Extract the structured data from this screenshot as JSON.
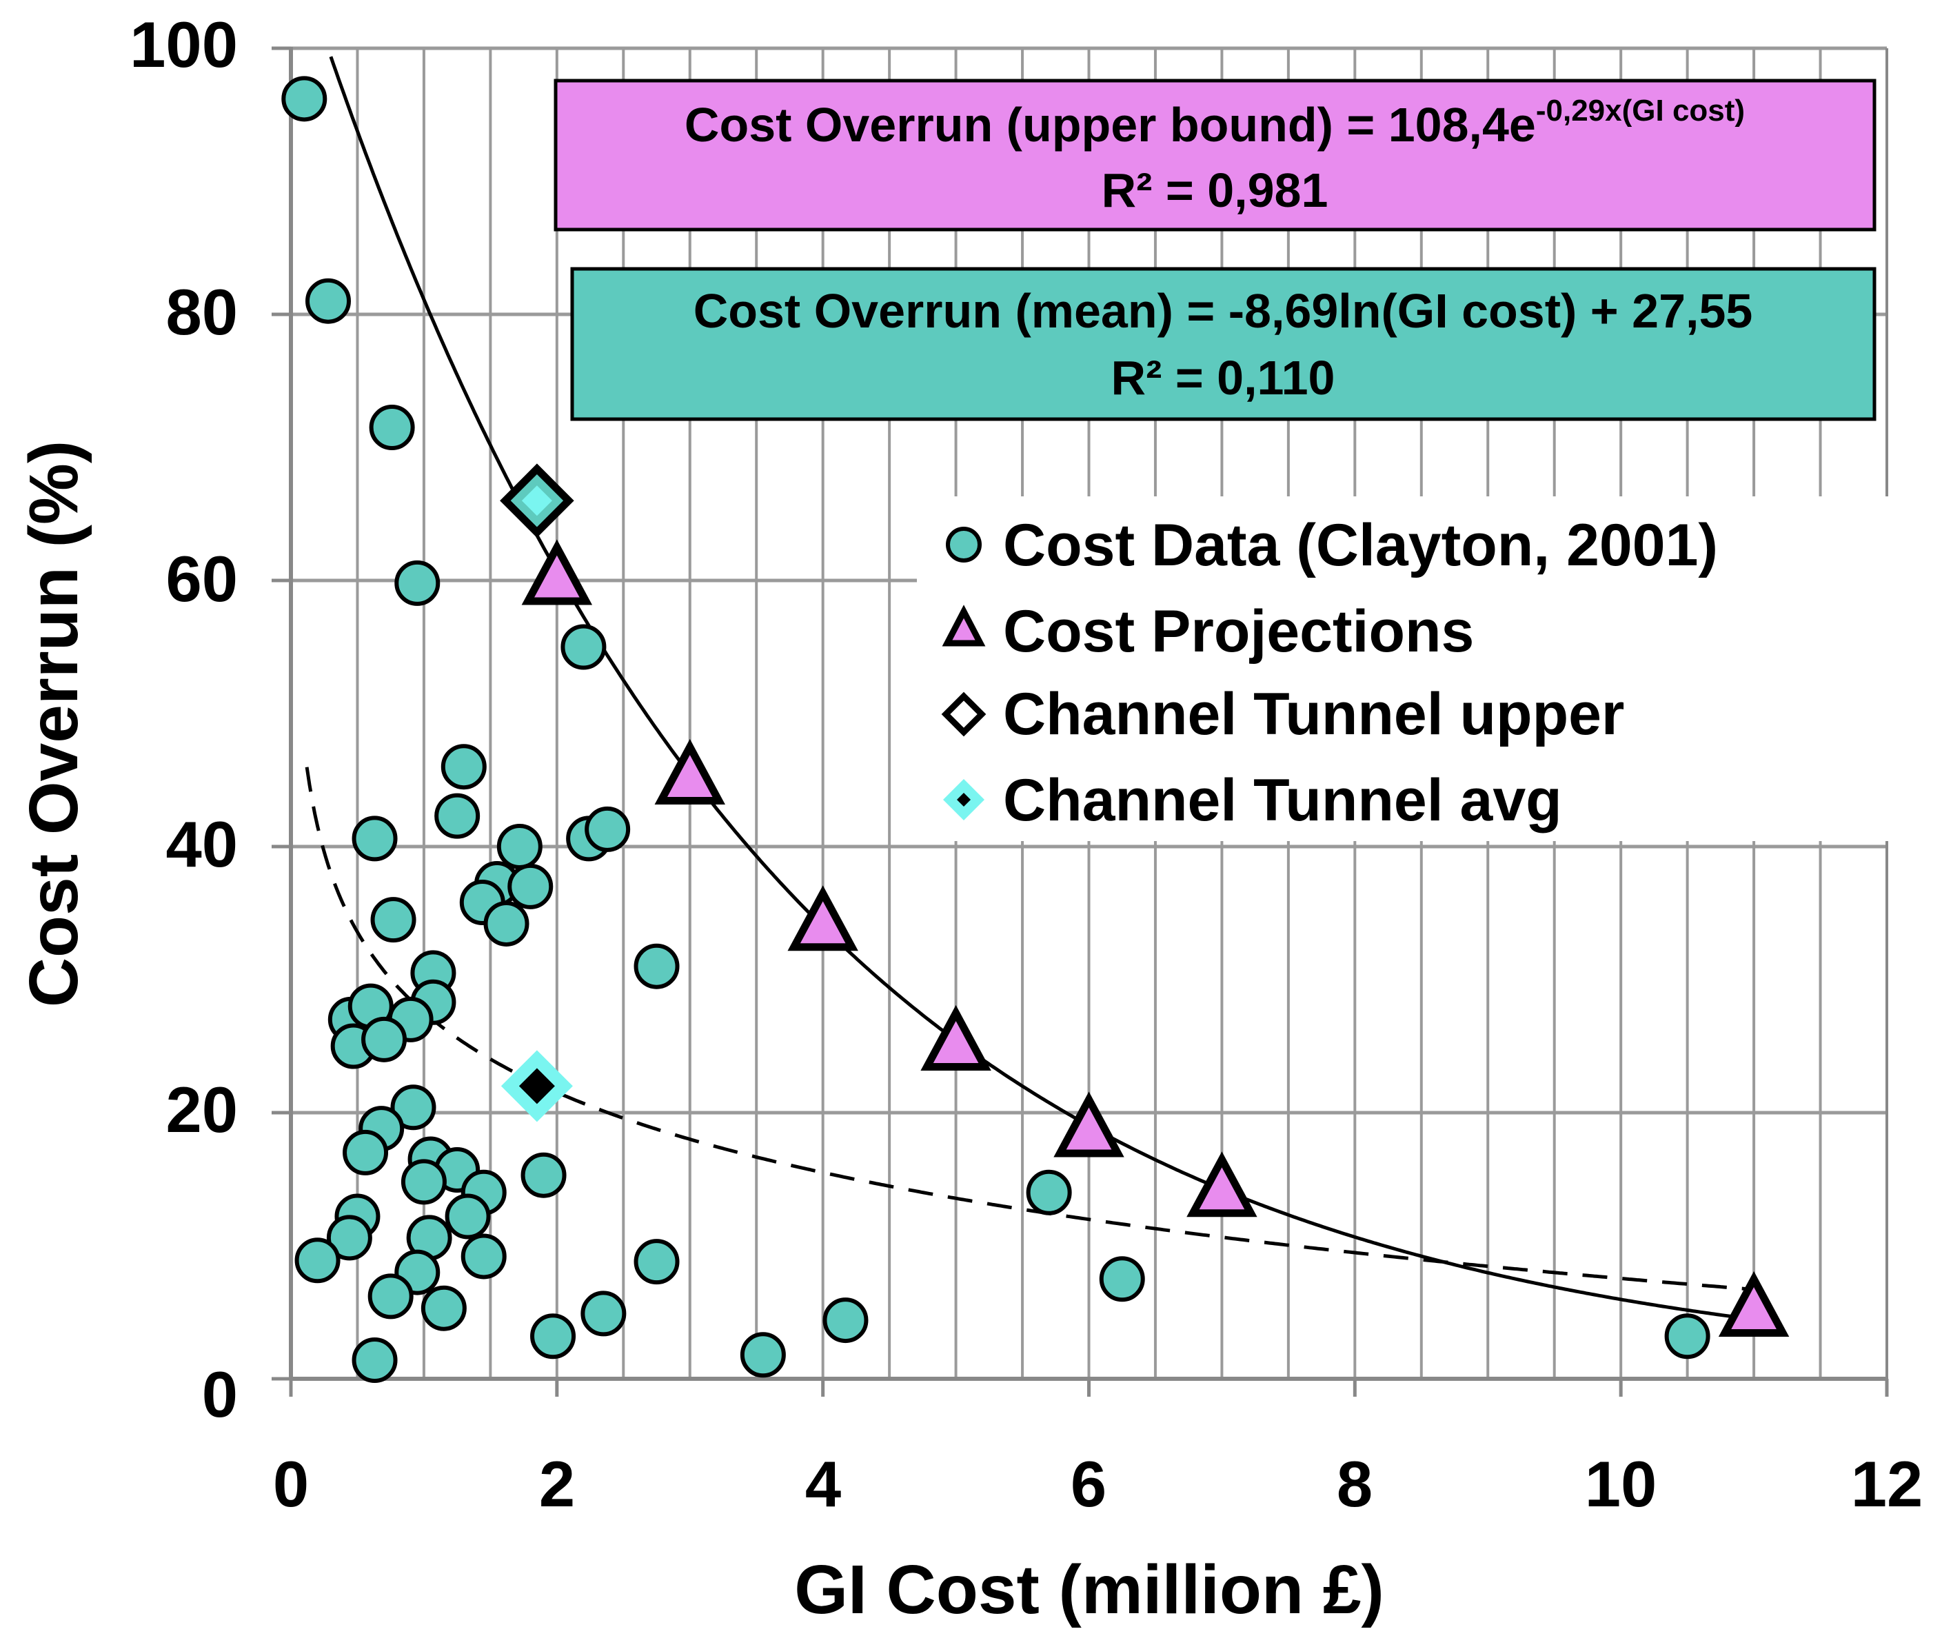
{
  "chart_data": {
    "type": "scatter",
    "xlabel": "GI Cost (million £)",
    "ylabel": "Cost Overrun (%)",
    "xlim": [
      0,
      12
    ],
    "ylim": [
      0,
      100
    ],
    "xticks": [
      "0",
      "2",
      "4",
      "6",
      "8",
      "10",
      "12"
    ],
    "yticks": [
      "0",
      "20",
      "40",
      "60",
      "80",
      "100"
    ],
    "grid": "major horizontal every 20, vertical every 0.5",
    "legend": {
      "position": "right-middle",
      "entries": [
        {
          "label": "Cost Data (Clayton, 2001)",
          "marker": "circle"
        },
        {
          "label": "Cost Projections",
          "marker": "triangle"
        },
        {
          "label": "Channel Tunnel upper",
          "marker": "diamond"
        },
        {
          "label": "Channel Tunnel avg",
          "marker": "diamond"
        }
      ]
    },
    "equations": {
      "upper": {
        "prefix": "Cost Overrun (upper bound) = 108,4e",
        "exponent": "-0,29x(GI cost)",
        "r2": "R² = 0,981"
      },
      "mean": {
        "text": "Cost Overrun (mean) = -8,69ln(GI cost) + 27,55",
        "r2": "R² = 0,110"
      }
    },
    "series": [
      {
        "name": "Cost Data (Clayton, 2001)",
        "marker": "circle",
        "points": [
          [
            0.1,
            96.2
          ],
          [
            0.28,
            81
          ],
          [
            0.76,
            71.5
          ],
          [
            0.95,
            59.8
          ],
          [
            2.2,
            55
          ],
          [
            1.3,
            46
          ],
          [
            0.63,
            40.6
          ],
          [
            1.25,
            42.3
          ],
          [
            1.72,
            40
          ],
          [
            2.24,
            40.6
          ],
          [
            2.38,
            41.3
          ],
          [
            1.55,
            37.2
          ],
          [
            1.44,
            35.8
          ],
          [
            1.8,
            37
          ],
          [
            1.62,
            34.2
          ],
          [
            0.77,
            34.5
          ],
          [
            1.07,
            30.5
          ],
          [
            1.07,
            28.3
          ],
          [
            0.45,
            27
          ],
          [
            0.6,
            28
          ],
          [
            0.9,
            27
          ],
          [
            0.47,
            25
          ],
          [
            0.7,
            25.5
          ],
          [
            2.75,
            31
          ],
          [
            0.92,
            20.4
          ],
          [
            0.68,
            18.8
          ],
          [
            0.56,
            17
          ],
          [
            1.05,
            16.5
          ],
          [
            1.25,
            15.7
          ],
          [
            1.45,
            14
          ],
          [
            1.0,
            14.8
          ],
          [
            1.9,
            15.3
          ],
          [
            1.33,
            12.2
          ],
          [
            0.5,
            12.2
          ],
          [
            0.44,
            10.6
          ],
          [
            1.04,
            10.6
          ],
          [
            0.2,
            8.9
          ],
          [
            1.45,
            9.2
          ],
          [
            0.95,
            8
          ],
          [
            2.75,
            8.8
          ],
          [
            0.75,
            6.2
          ],
          [
            1.15,
            5.3
          ],
          [
            2.35,
            4.9
          ],
          [
            1.97,
            3.2
          ],
          [
            4.17,
            4.4
          ],
          [
            3.55,
            1.8
          ],
          [
            0.63,
            1.4
          ],
          [
            5.7,
            14
          ],
          [
            6.25,
            7.5
          ],
          [
            10.5,
            3.2
          ]
        ]
      },
      {
        "name": "Cost Projections",
        "marker": "triangle",
        "points": [
          [
            2,
            60
          ],
          [
            3,
            45
          ],
          [
            4,
            34
          ],
          [
            5,
            25
          ],
          [
            6,
            18.5
          ],
          [
            7,
            14
          ],
          [
            11,
            5
          ]
        ]
      },
      {
        "name": "Channel Tunnel upper",
        "marker": "diamond",
        "points": [
          [
            1.85,
            66
          ],
          [
            1.85,
            22
          ]
        ]
      },
      {
        "name": "Channel Tunnel avg",
        "marker": "diamond",
        "points": [
          [
            1.85,
            66
          ],
          [
            1.85,
            22
          ]
        ]
      }
    ],
    "trendlines": [
      {
        "name": "upper bound",
        "type": "exponential",
        "a": 108.4,
        "b": -0.29,
        "xrange": [
          0.3,
          11
        ]
      },
      {
        "name": "mean",
        "type": "logarithmic",
        "a": -8.69,
        "c": 27.55,
        "xrange": [
          0.1,
          11
        ]
      }
    ]
  },
  "colors": {
    "circle_fill": "#5ECABE",
    "triangle_fill": "#E88CEE",
    "diamond_upper_fill": "#5ECABE",
    "diamond_avg_fill": "#7AF5F0",
    "upper_box": "#E88CEE",
    "mean_box": "#5ECABE",
    "grid": "#9a9a9a"
  }
}
